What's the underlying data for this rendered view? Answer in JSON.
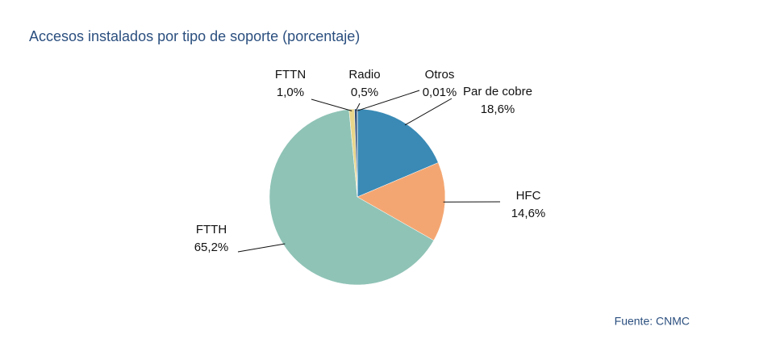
{
  "chart_data": {
    "type": "pie",
    "title": "Accesos instalados por tipo de soporte (porcentaje)",
    "categories": [
      "Par de cobre",
      "HFC",
      "FTTH",
      "FTTN",
      "Radio",
      "Otros"
    ],
    "values": [
      18.6,
      14.6,
      65.2,
      1.0,
      0.5,
      0.01
    ],
    "value_labels": [
      "18,6%",
      "14,6%",
      "65,2%",
      "1,0%",
      "0,5%",
      "0,01%"
    ],
    "colors": [
      "#3a8ab5",
      "#f4a672",
      "#8fc3b6",
      "#e8d68a",
      "#2f4f7a",
      "#1f3a5f"
    ],
    "source": "Fuente: CNMC"
  }
}
